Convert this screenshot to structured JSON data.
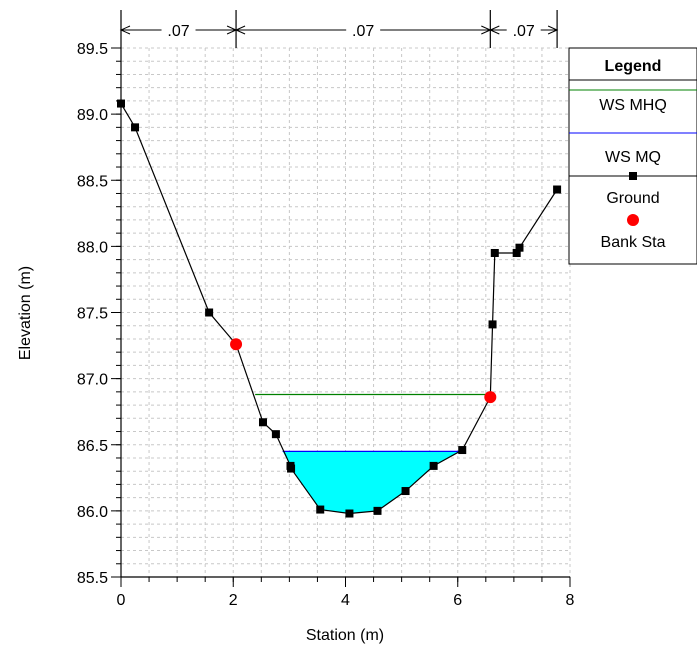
{
  "chart_data": {
    "type": "line",
    "xlabel": "Station (m)",
    "ylabel": "Elevation (m)",
    "xlim": [
      0,
      8
    ],
    "ylim": [
      85.5,
      89.5
    ],
    "x_ticks": [
      "0",
      "2",
      "4",
      "6",
      "8"
    ],
    "y_ticks": [
      "85.5",
      "86.0",
      "86.5",
      "87.0",
      "87.5",
      "88.0",
      "88.5",
      "89.0",
      "89.5"
    ],
    "grid": true,
    "legend": {
      "title": "Legend",
      "placement": "right",
      "entries": [
        {
          "name": "WS MHQ",
          "color": "#008000",
          "marker": "none"
        },
        {
          "name": "WS MQ",
          "color": "#0000ff",
          "marker": "none"
        },
        {
          "name": "Ground",
          "color": "#000000",
          "marker": "square"
        },
        {
          "name": "Bank Sta",
          "color": "#ff0000",
          "marker": "circle"
        }
      ]
    },
    "series": [
      {
        "name": "Ground",
        "color": "#000000",
        "x": [
          0.0,
          0.25,
          1.57,
          2.05,
          2.53,
          2.76,
          3.02,
          3.03,
          3.55,
          4.07,
          4.57,
          5.07,
          5.57,
          6.08,
          6.58,
          6.62,
          6.66,
          7.05,
          7.1,
          7.77
        ],
        "y": [
          89.08,
          88.9,
          87.5,
          87.26,
          86.67,
          86.58,
          86.34,
          86.32,
          86.01,
          85.98,
          86.0,
          86.15,
          86.34,
          86.46,
          86.86,
          87.41,
          87.95,
          87.95,
          87.99,
          88.43
        ]
      },
      {
        "name": "WS MHQ",
        "color": "#008000",
        "elevation": 86.88,
        "x_range": [
          2.39,
          6.58
        ]
      },
      {
        "name": "WS MQ",
        "color": "#0000ff",
        "elevation": 86.45,
        "x_range": [
          2.88,
          6.05
        ],
        "fill": "#00ffff"
      },
      {
        "name": "Bank Sta",
        "color": "#ff0000",
        "x": [
          2.05,
          6.58
        ],
        "y": [
          87.26,
          86.86
        ]
      }
    ],
    "manning_n": {
      "labels": [
        ".07",
        ".07",
        ".07"
      ],
      "breaks": [
        0,
        2.05,
        6.58,
        7.77
      ]
    }
  }
}
